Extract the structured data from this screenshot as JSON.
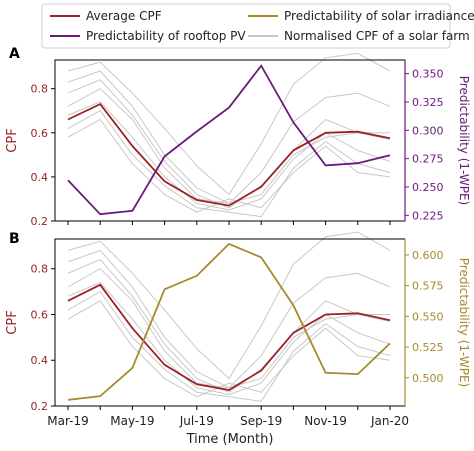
{
  "legend": {
    "items": [
      {
        "label": "Average CPF",
        "color": "#9b2226"
      },
      {
        "label": "Predictability of solar irradiance",
        "color": "#a68a2e"
      },
      {
        "label": "Predictability of rooftop PV",
        "color": "#6a1b7a"
      },
      {
        "label": "Normalised CPF of a solar farm",
        "color": "#c8c8c8"
      }
    ]
  },
  "xlabel": "Time (Month)",
  "x_tick_labels": [
    "Mar-19",
    "May-19",
    "Jul-19",
    "Sep-19",
    "Nov-19",
    "Jan-20"
  ],
  "colors": {
    "cpf": "#9b2226",
    "rooftop": "#6a1b7a",
    "solar": "#a68a2e",
    "farm": "#c8c8c8"
  },
  "chart_data": [
    {
      "type": "line",
      "panel_label": "A",
      "x": [
        "Mar-19",
        "Apr-19",
        "May-19",
        "Jun-19",
        "Jul-19",
        "Aug-19",
        "Sep-19",
        "Oct-19",
        "Nov-19",
        "Dec-19",
        "Jan-20"
      ],
      "ylabel": "CPF",
      "ylim": [
        0.2,
        0.93
      ],
      "y_ticks": [
        0.2,
        0.4,
        0.6,
        0.8
      ],
      "y2label": "Predictability (1-WPE)",
      "y2lim": [
        0.22,
        0.362
      ],
      "y2_ticks": [
        0.225,
        0.25,
        0.275,
        0.3,
        0.325,
        0.35
      ],
      "series": [
        {
          "name": "Average CPF",
          "axis": "left",
          "values": [
            0.66,
            0.73,
            0.54,
            0.38,
            0.295,
            0.27,
            0.355,
            0.52,
            0.6,
            0.605,
            0.575
          ]
        },
        {
          "name": "Predictability of rooftop PV",
          "axis": "right",
          "values": [
            0.256,
            0.226,
            0.229,
            0.277,
            0.299,
            0.32,
            0.357,
            0.307,
            0.269,
            0.271,
            0.278
          ]
        }
      ],
      "background_series": [
        [
          0.88,
          0.92,
          0.78,
          0.62,
          0.45,
          0.32,
          0.55,
          0.82,
          0.94,
          0.96,
          0.88
        ],
        [
          0.83,
          0.88,
          0.72,
          0.5,
          0.35,
          0.28,
          0.42,
          0.65,
          0.76,
          0.78,
          0.72
        ],
        [
          0.78,
          0.84,
          0.68,
          0.47,
          0.32,
          0.26,
          0.36,
          0.52,
          0.66,
          0.6,
          0.6
        ],
        [
          0.72,
          0.8,
          0.66,
          0.44,
          0.3,
          0.28,
          0.32,
          0.5,
          0.58,
          0.6,
          0.57
        ],
        [
          0.68,
          0.74,
          0.58,
          0.4,
          0.28,
          0.25,
          0.3,
          0.48,
          0.6,
          0.52,
          0.47
        ],
        [
          0.62,
          0.7,
          0.5,
          0.36,
          0.26,
          0.24,
          0.22,
          0.44,
          0.56,
          0.46,
          0.42
        ],
        [
          0.58,
          0.66,
          0.46,
          0.32,
          0.24,
          0.3,
          0.26,
          0.42,
          0.54,
          0.42,
          0.4
        ]
      ]
    },
    {
      "type": "line",
      "panel_label": "B",
      "x": [
        "Mar-19",
        "Apr-19",
        "May-19",
        "Jun-19",
        "Jul-19",
        "Aug-19",
        "Sep-19",
        "Oct-19",
        "Nov-19",
        "Dec-19",
        "Jan-20"
      ],
      "ylabel": "CPF",
      "ylim": [
        0.2,
        0.93
      ],
      "y_ticks": [
        0.2,
        0.4,
        0.6,
        0.8
      ],
      "y2label": "Predictability (1-WPE)",
      "y2lim": [
        0.477,
        0.613
      ],
      "y2_ticks": [
        0.5,
        0.525,
        0.55,
        0.575,
        0.6
      ],
      "series": [
        {
          "name": "Average CPF",
          "axis": "left",
          "values": [
            0.66,
            0.73,
            0.54,
            0.38,
            0.295,
            0.27,
            0.355,
            0.52,
            0.6,
            0.605,
            0.575
          ]
        },
        {
          "name": "Predictability of solar irradiance",
          "axis": "right",
          "values": [
            0.482,
            0.485,
            0.508,
            0.572,
            0.583,
            0.609,
            0.598,
            0.559,
            0.504,
            0.503,
            0.528
          ]
        }
      ],
      "background_series": [
        [
          0.88,
          0.92,
          0.78,
          0.62,
          0.45,
          0.32,
          0.55,
          0.82,
          0.94,
          0.96,
          0.88
        ],
        [
          0.83,
          0.88,
          0.72,
          0.5,
          0.35,
          0.28,
          0.42,
          0.65,
          0.76,
          0.78,
          0.72
        ],
        [
          0.78,
          0.84,
          0.68,
          0.47,
          0.32,
          0.26,
          0.36,
          0.52,
          0.66,
          0.6,
          0.6
        ],
        [
          0.72,
          0.8,
          0.66,
          0.44,
          0.3,
          0.28,
          0.32,
          0.5,
          0.58,
          0.6,
          0.57
        ],
        [
          0.68,
          0.74,
          0.58,
          0.4,
          0.28,
          0.25,
          0.3,
          0.48,
          0.6,
          0.52,
          0.47
        ],
        [
          0.62,
          0.7,
          0.5,
          0.36,
          0.26,
          0.24,
          0.22,
          0.44,
          0.56,
          0.46,
          0.42
        ],
        [
          0.58,
          0.66,
          0.46,
          0.32,
          0.24,
          0.3,
          0.26,
          0.42,
          0.54,
          0.42,
          0.4
        ]
      ]
    }
  ]
}
